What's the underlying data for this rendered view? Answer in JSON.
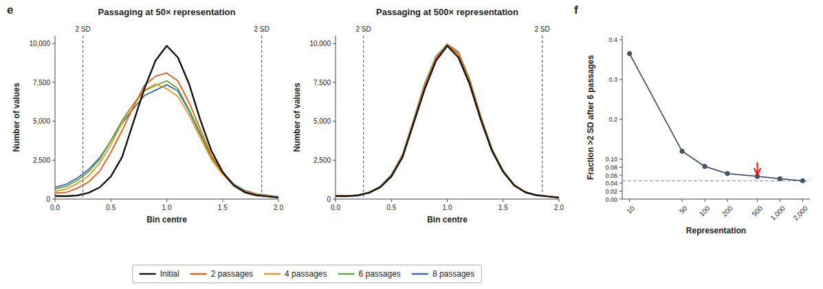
{
  "chart_data": [
    {
      "type": "line",
      "title": "Passaging at 50× representation",
      "panel_label": "e",
      "x_label": "Bin centre",
      "y_label": "Number of values",
      "x": [
        0.0,
        0.1,
        0.2,
        0.3,
        0.4,
        0.5,
        0.6,
        0.7,
        0.8,
        0.9,
        1.0,
        1.1,
        1.2,
        1.3,
        1.4,
        1.5,
        1.6,
        1.7,
        1.8,
        1.9,
        2.0
      ],
      "series": [
        {
          "name": "Initial",
          "color": "#111111",
          "values": [
            200,
            190,
            230,
            400,
            750,
            1450,
            2700,
            4900,
            7100,
            8900,
            9850,
            9100,
            7400,
            5100,
            3100,
            1750,
            870,
            430,
            240,
            170,
            95
          ]
        },
        {
          "name": "2 passages",
          "color": "#d95f1a",
          "values": [
            380,
            430,
            700,
            1100,
            1800,
            3000,
            4400,
            5900,
            7300,
            7900,
            8100,
            7600,
            6200,
            4500,
            2800,
            1700,
            870,
            480,
            280,
            195,
            115
          ]
        },
        {
          "name": "4 passages",
          "color": "#e8961e",
          "values": [
            500,
            650,
            1000,
            1500,
            2300,
            3500,
            4900,
            6100,
            7000,
            7400,
            7100,
            6600,
            5400,
            3950,
            2550,
            1580,
            880,
            510,
            300,
            215,
            125
          ]
        },
        {
          "name": "6 passages",
          "color": "#5fa832",
          "values": [
            650,
            820,
            1200,
            1750,
            2550,
            3750,
            5050,
            6100,
            6950,
            7300,
            7600,
            7100,
            5750,
            4250,
            2650,
            1680,
            930,
            540,
            320,
            230,
            135
          ]
        },
        {
          "name": "8 passages",
          "color": "#3a65b5",
          "values": [
            750,
            950,
            1350,
            1900,
            2650,
            3750,
            4850,
            5800,
            6650,
            7000,
            7350,
            6950,
            5650,
            4150,
            2650,
            1680,
            960,
            560,
            335,
            245,
            148
          ]
        }
      ],
      "xlim": [
        0,
        2
      ],
      "xticks": [
        {
          "value": 0,
          "label": "0.0"
        },
        0.5,
        {
          "value": 1,
          "label": "1.0"
        },
        1.5,
        {
          "value": 2,
          "label": "2.0"
        }
      ],
      "ylim": [
        0,
        10500
      ],
      "yticks": [
        0,
        {
          "value": 2500,
          "label": "2,500"
        },
        {
          "value": 5000,
          "label": "5,000"
        },
        {
          "value": 7500,
          "label": "7,500"
        },
        {
          "value": 10000,
          "label": "10,000"
        }
      ],
      "annotations": [
        {
          "x": 0.25,
          "text": "2 SD"
        },
        {
          "x": 1.85,
          "text": "2 SD"
        }
      ],
      "grid": false,
      "legend": "bottom"
    },
    {
      "type": "line",
      "title": "Passaging at 500× representation",
      "x_label": "Bin centre",
      "y_label": "Number of values",
      "x": [
        0.0,
        0.1,
        0.2,
        0.3,
        0.4,
        0.5,
        0.6,
        0.7,
        0.8,
        0.9,
        1.0,
        1.1,
        1.2,
        1.3,
        1.4,
        1.5,
        1.6,
        1.7,
        1.8,
        1.9,
        2.0
      ],
      "series": [
        {
          "name": "Initial",
          "color": "#111111",
          "values": [
            200,
            190,
            230,
            400,
            750,
            1450,
            2700,
            4900,
            7100,
            8900,
            9850,
            9100,
            7400,
            5100,
            3100,
            1750,
            870,
            430,
            240,
            170,
            95
          ]
        },
        {
          "name": "2 passages",
          "color": "#d95f1a",
          "values": [
            205,
            195,
            240,
            420,
            780,
            1500,
            2780,
            5000,
            7280,
            9050,
            9900,
            9280,
            7550,
            5200,
            3160,
            1790,
            890,
            442,
            248,
            175,
            98
          ]
        },
        {
          "name": "4 passages",
          "color": "#e8961e",
          "values": [
            208,
            198,
            244,
            430,
            800,
            1530,
            2820,
            5060,
            7360,
            9100,
            9930,
            9360,
            7630,
            5260,
            3200,
            1810,
            900,
            448,
            253,
            178,
            100
          ]
        },
        {
          "name": "6 passages",
          "color": "#5fa832",
          "values": [
            210,
            200,
            248,
            438,
            815,
            1550,
            2850,
            5100,
            7410,
            9140,
            9950,
            9410,
            7680,
            5300,
            3225,
            1825,
            908,
            452,
            256,
            180,
            101
          ]
        },
        {
          "name": "8 passages",
          "color": "#3a65b5",
          "values": [
            212,
            202,
            250,
            444,
            825,
            1565,
            2870,
            5130,
            7450,
            9170,
            9960,
            9450,
            7710,
            5330,
            3240,
            1835,
            912,
            454,
            258,
            181,
            102
          ]
        }
      ],
      "xlim": [
        0,
        2
      ],
      "xticks": [
        {
          "value": 0,
          "label": "0.0"
        },
        0.5,
        {
          "value": 1,
          "label": "1.0"
        },
        1.5,
        {
          "value": 2,
          "label": "2.0"
        }
      ],
      "ylim": [
        0,
        10500
      ],
      "yticks": [
        0,
        {
          "value": 2500,
          "label": "2,500"
        },
        {
          "value": 5000,
          "label": "5,000"
        },
        {
          "value": 7500,
          "label": "7,500"
        },
        {
          "value": 10000,
          "label": "10,000"
        }
      ],
      "annotations": [
        {
          "x": 0.25,
          "text": "2 SD"
        },
        {
          "x": 1.85,
          "text": "2 SD"
        }
      ],
      "grid": false
    },
    {
      "type": "line",
      "panel_label": "f",
      "x_label": "Representation",
      "y_label": "Fraction >2 SD after 6 passages",
      "x": [
        10,
        50,
        100,
        200,
        500,
        1000,
        2000
      ],
      "series": [
        {
          "name": "Fraction >2 SD",
          "color": "#445566",
          "marker": "circle",
          "values": [
            0.365,
            0.12,
            0.082,
            0.064,
            0.057,
            0.051,
            0.046
          ]
        }
      ],
      "log": "x",
      "xlim": [
        8,
        2500
      ],
      "xticks": [
        10,
        50,
        100,
        200,
        500,
        {
          "value": 1000,
          "label": "1,000"
        },
        {
          "value": 2000,
          "label": "2,000"
        }
      ],
      "ylim": [
        0.0,
        0.41
      ],
      "yticks": [
        {
          "value": 0.0,
          "label": "0.00"
        },
        0.02,
        0.04,
        0.06,
        0.08,
        {
          "value": 0.1,
          "label": "0.10"
        },
        0.2,
        0.3,
        0.4
      ],
      "reference_y": 0.0455,
      "arrow": {
        "x": 500,
        "y_start": 0.092,
        "y_end": 0.061,
        "color": "red"
      },
      "grid": false
    }
  ]
}
